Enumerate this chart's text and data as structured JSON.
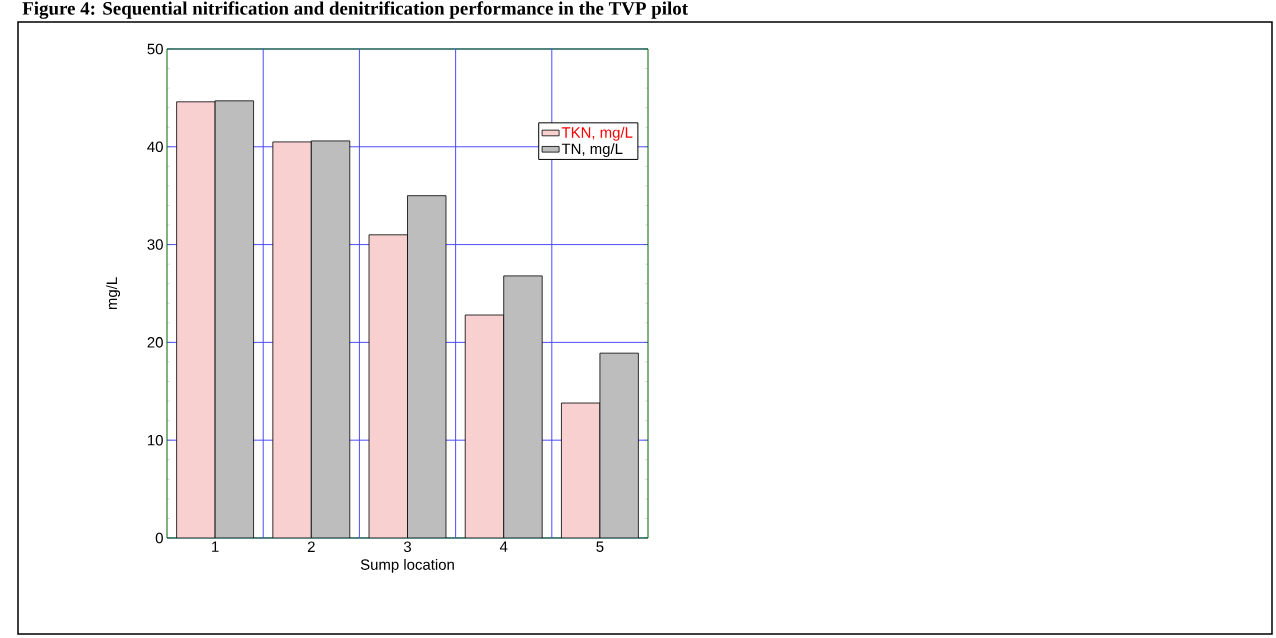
{
  "chart_data": {
    "type": "bar",
    "title": "Figure 4: Sequential nitrification and denitrification performance in the TVP pilot",
    "xlabel": "Sump location",
    "ylabel": "mg/L",
    "categories": [
      "1",
      "2",
      "3",
      "4",
      "5"
    ],
    "series": [
      {
        "name": "TKN, mg/L",
        "color": "#f9d0d0",
        "values": [
          44.6,
          40.5,
          31.0,
          22.8,
          13.8
        ]
      },
      {
        "name": "TN, mg/L",
        "color": "#bdbdbd",
        "values": [
          44.7,
          40.6,
          35.0,
          26.8,
          18.9
        ]
      }
    ],
    "ylim": [
      0,
      50
    ],
    "yticks": [
      0,
      10,
      20,
      30,
      40,
      50
    ],
    "grid": true,
    "legend": "top right"
  }
}
